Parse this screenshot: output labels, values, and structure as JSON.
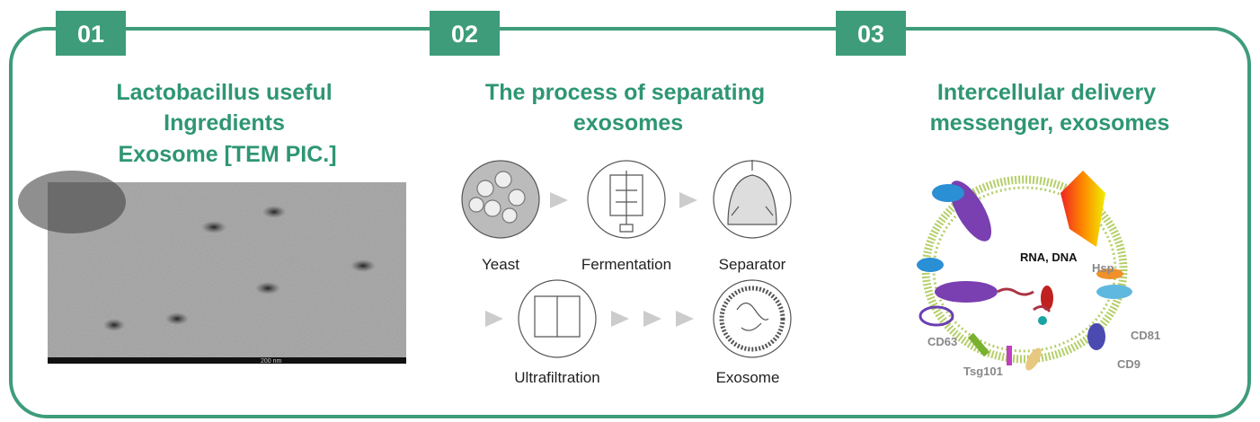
{
  "sections": [
    {
      "number": "01",
      "title": [
        "Lactobacillus useful",
        "Ingredients",
        "Exosome [TEM PIC.]"
      ],
      "scale": "200 nm"
    },
    {
      "number": "02",
      "title": [
        "The process of separating",
        "exosomes"
      ],
      "steps": [
        "Yeast",
        "Fermentation",
        "Separator",
        "Ultrafiltration",
        "Exosome"
      ]
    },
    {
      "number": "03",
      "title": [
        "Intercellular delivery",
        "messenger, exosomes"
      ],
      "labels": [
        "RNA, DNA",
        "Hsp",
        "CD63",
        "Tsg101",
        "CD81",
        "CD9"
      ]
    }
  ]
}
